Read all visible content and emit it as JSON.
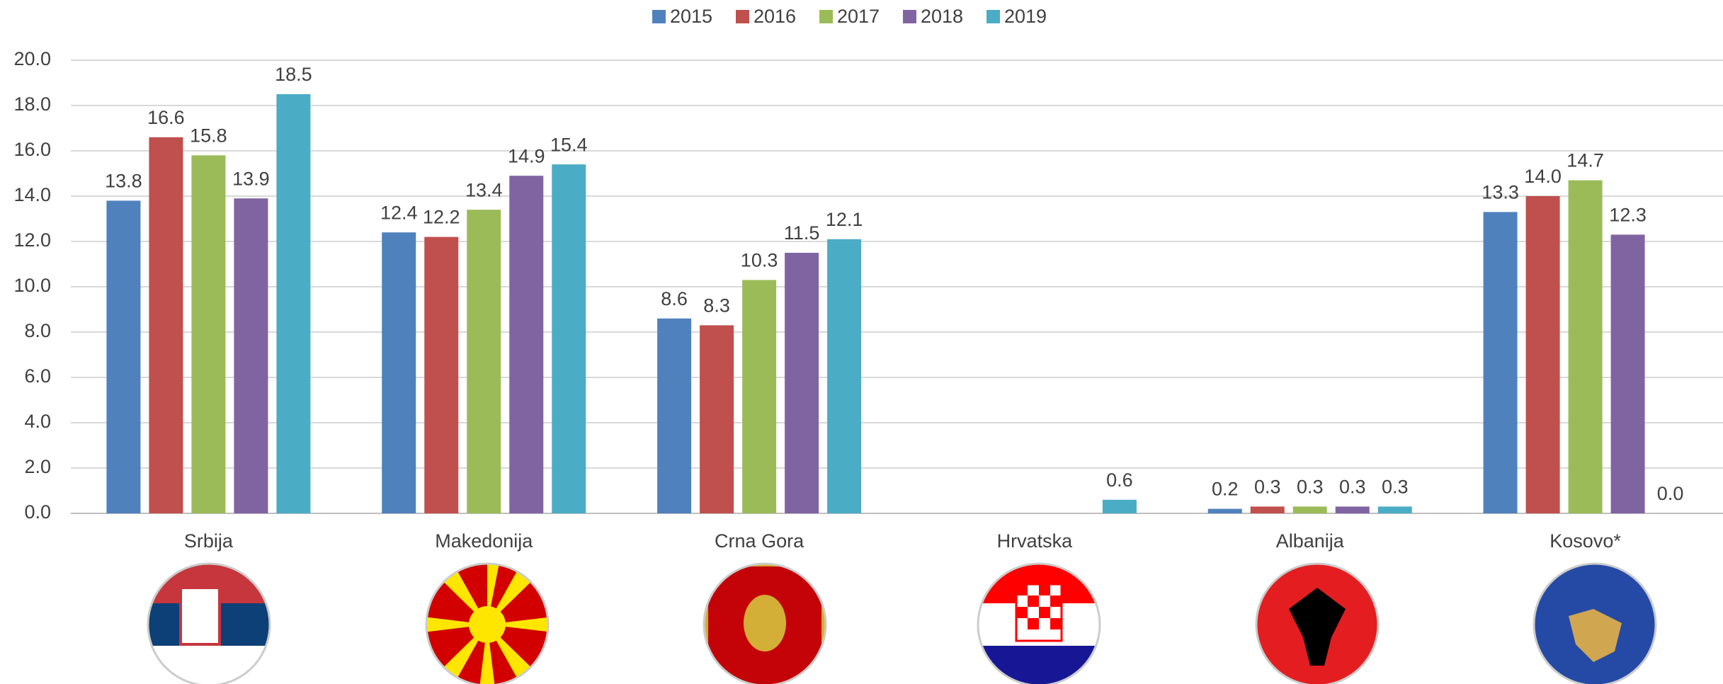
{
  "chart_data": {
    "type": "bar",
    "categories": [
      "Srbija",
      "Makedonija",
      "Crna Gora",
      "Hrvatska",
      "Albanija",
      "Kosovo*"
    ],
    "series": [
      {
        "name": "2015",
        "color": "#4f81bd",
        "values": [
          13.8,
          12.4,
          8.6,
          null,
          0.2,
          13.3
        ],
        "value_labels": [
          "13.8",
          "12.4",
          "8.6",
          null,
          "0.2",
          "13.3"
        ]
      },
      {
        "name": "2016",
        "color": "#c0504d",
        "values": [
          16.6,
          12.2,
          8.3,
          null,
          0.3,
          14.0
        ],
        "value_labels": [
          "16.6",
          "12.2",
          "8.3",
          null,
          "0.3",
          "14.0"
        ]
      },
      {
        "name": "2017",
        "color": "#9bbb59",
        "values": [
          15.8,
          13.4,
          10.3,
          null,
          0.3,
          14.7
        ],
        "value_labels": [
          "15.8",
          "13.4",
          "10.3",
          null,
          "0.3",
          "14.7"
        ]
      },
      {
        "name": "2018",
        "color": "#8064a2",
        "values": [
          13.9,
          14.9,
          11.5,
          null,
          0.3,
          12.3
        ],
        "value_labels": [
          "13.9",
          "14.9",
          "11.5",
          null,
          "0.3",
          "12.3"
        ]
      },
      {
        "name": "2019",
        "color": "#4bacc6",
        "values": [
          18.5,
          15.4,
          12.1,
          0.6,
          0.3,
          0.0
        ],
        "value_labels": [
          "18.5",
          "15.4",
          "12.1",
          "0.6",
          "0.3",
          "0.0"
        ]
      }
    ],
    "ylim": [
      0,
      20
    ],
    "yticks": [
      {
        "value": 0,
        "label": "0.0"
      },
      {
        "value": 2,
        "label": "2.0"
      },
      {
        "value": 4,
        "label": "4.0"
      },
      {
        "value": 6,
        "label": "6.0"
      },
      {
        "value": 8,
        "label": "8.0"
      },
      {
        "value": 10,
        "label": "10.0"
      },
      {
        "value": 12,
        "label": "12.0"
      },
      {
        "value": 14,
        "label": "14.0"
      },
      {
        "value": 16,
        "label": "16.0"
      },
      {
        "value": 18,
        "label": "18.0"
      },
      {
        "value": 20,
        "label": "20.0"
      }
    ],
    "grid": true,
    "legend": "top"
  }
}
